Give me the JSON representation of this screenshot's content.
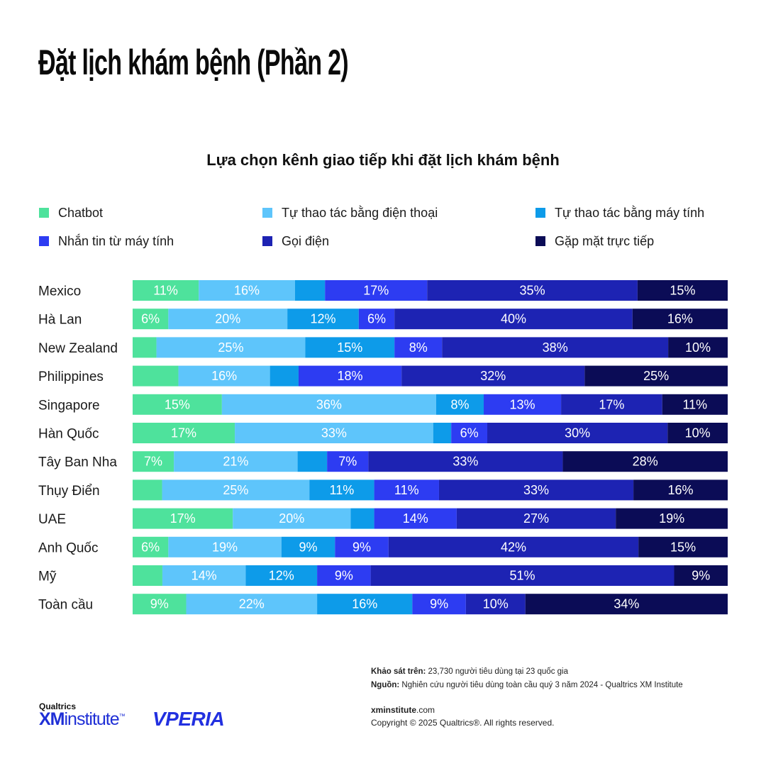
{
  "header": {
    "title": "Đặt lịch khám bệnh (Phần 2)"
  },
  "chart_data": {
    "type": "bar",
    "orientation": "horizontal",
    "stacked": true,
    "title": "Lựa chọn kênh giao tiếp khi đặt lịch khám bệnh",
    "categories": [
      "Mexico",
      "Hà Lan",
      "New Zealand",
      "Philippines",
      "Singapore",
      "Hàn Quốc",
      "Tây Ban Nha",
      "Thụy Điển",
      "UAE",
      "Anh Quốc",
      "Mỹ",
      "Toàn cầu"
    ],
    "series": [
      {
        "name": "Chatbot",
        "color": "#4ee29c",
        "values": [
          11,
          6,
          4,
          8,
          15,
          17,
          7,
          5,
          17,
          6,
          5,
          9
        ]
      },
      {
        "name": "Tự thao tác bằng điện thoại",
        "color": "#5ec5fb",
        "values": [
          16,
          20,
          25,
          16,
          36,
          33,
          21,
          25,
          20,
          19,
          14,
          22
        ]
      },
      {
        "name": "Tự thao tác bằng máy tính",
        "color": "#0d9be9",
        "values": [
          5,
          12,
          15,
          5,
          8,
          3,
          5,
          11,
          4,
          9,
          12,
          16
        ]
      },
      {
        "name": "Nhắn tin từ máy tính",
        "color": "#2d3cf2",
        "values": [
          17,
          6,
          8,
          18,
          13,
          6,
          7,
          11,
          14,
          9,
          9,
          9
        ]
      },
      {
        "name": "Gọi điện",
        "color": "#1d23b3",
        "values": [
          35,
          40,
          38,
          32,
          17,
          30,
          33,
          33,
          27,
          42,
          51,
          10
        ]
      },
      {
        "name": "Gặp mặt trực tiếp",
        "color": "#0b0c56",
        "values": [
          15,
          16,
          10,
          25,
          11,
          10,
          28,
          16,
          19,
          15,
          9,
          34
        ]
      }
    ],
    "labels": [
      [
        "11%",
        "16%",
        "",
        "17%",
        "35%",
        "15%"
      ],
      [
        "6%",
        "20%",
        "12%",
        "6%",
        "40%",
        "16%"
      ],
      [
        "",
        "25%",
        "15%",
        "8%",
        "38%",
        "10%"
      ],
      [
        "",
        "16%",
        "",
        "18%",
        "32%",
        "25%"
      ],
      [
        "15%",
        "36%",
        "8%",
        "13%",
        "17%",
        "11%"
      ],
      [
        "17%",
        "33%",
        "",
        "6%",
        "30%",
        "10%"
      ],
      [
        "7%",
        "21%",
        "",
        "7%",
        "33%",
        "28%"
      ],
      [
        "",
        "25%",
        "11%",
        "11%",
        "33%",
        "16%"
      ],
      [
        "17%",
        "20%",
        "",
        "14%",
        "27%",
        "19%"
      ],
      [
        "6%",
        "19%",
        "9%",
        "9%",
        "42%",
        "15%"
      ],
      [
        "",
        "14%",
        "12%",
        "9%",
        "51%",
        "9%"
      ],
      [
        "9%",
        "22%",
        "16%",
        "9%",
        "10%",
        "34%"
      ]
    ],
    "legend_position": "top",
    "grid": false
  },
  "footer": {
    "survey_label": "Khảo sát trên:",
    "survey_text": " 23,730 người tiêu dùng tại 23 quốc gia",
    "source_label": "Nguồn:",
    "source_text": " Nghiên cứu người tiêu dùng toàn cầu quý 3 năm 2024 - Qualtrics XM Institute",
    "website_bold": "xminstitute",
    "website_rest": ".com",
    "copyright": "Copyright © 2025 Qualtrics®. All rights reserved."
  },
  "logos": {
    "qualtrics": "Qualtrics",
    "xm": "XM",
    "institute": "institute",
    "tm": "™",
    "vperia": "VPERIA"
  }
}
